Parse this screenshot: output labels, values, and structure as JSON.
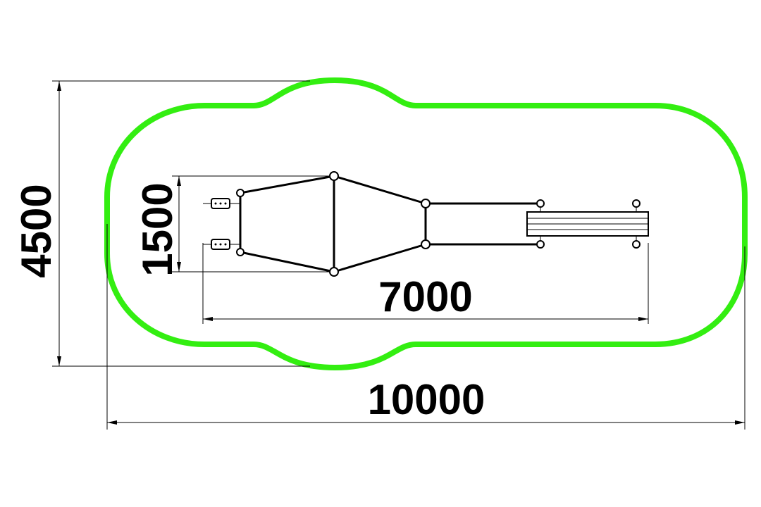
{
  "drawing": {
    "border_color": "#33ee11",
    "line_color": "#000000",
    "background": "#ffffff"
  },
  "dimensions": {
    "overall_length": "10000",
    "overall_width": "4500",
    "equipment_length": "7000",
    "equipment_width": "1500"
  }
}
